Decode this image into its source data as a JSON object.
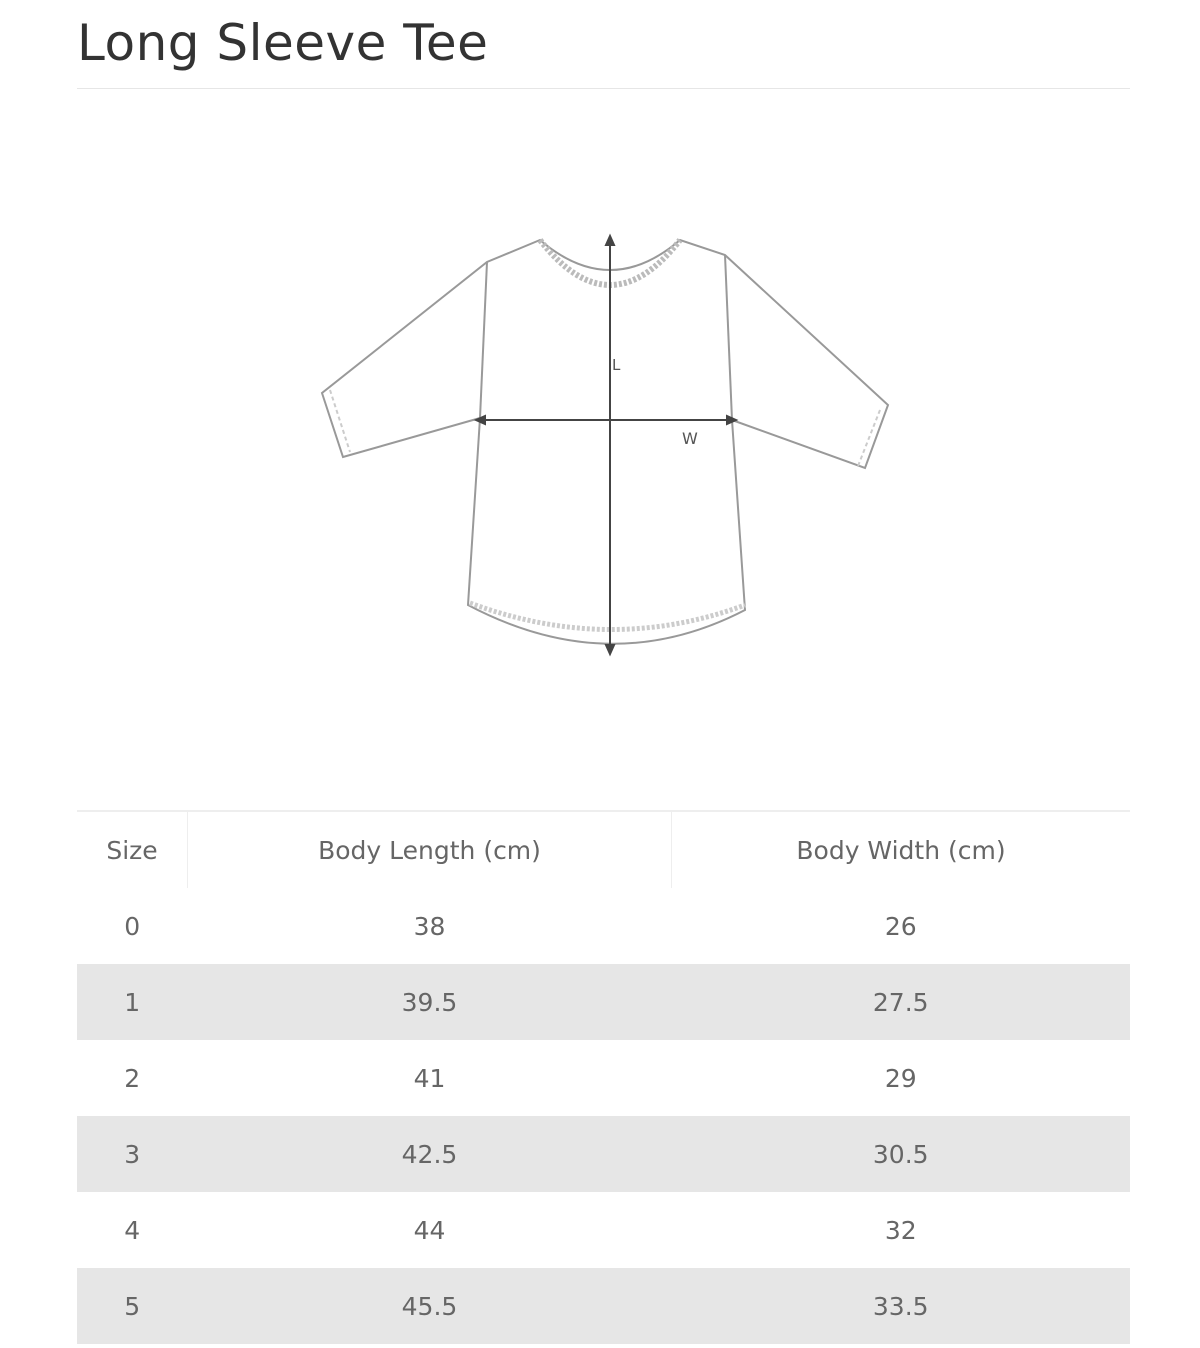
{
  "title": "Long Sleeve Tee",
  "diagram": {
    "length_label": "L",
    "width_label": "W"
  },
  "table": {
    "headers": [
      "Size",
      "Body Length (cm)",
      "Body Width (cm)"
    ],
    "rows": [
      [
        "0",
        "38",
        "26"
      ],
      [
        "1",
        "39.5",
        "27.5"
      ],
      [
        "2",
        "41",
        "29"
      ],
      [
        "3",
        "42.5",
        "30.5"
      ],
      [
        "4",
        "44",
        "32"
      ],
      [
        "5",
        "45.5",
        "33.5"
      ]
    ],
    "stripe_color": "#e6e6e6"
  }
}
